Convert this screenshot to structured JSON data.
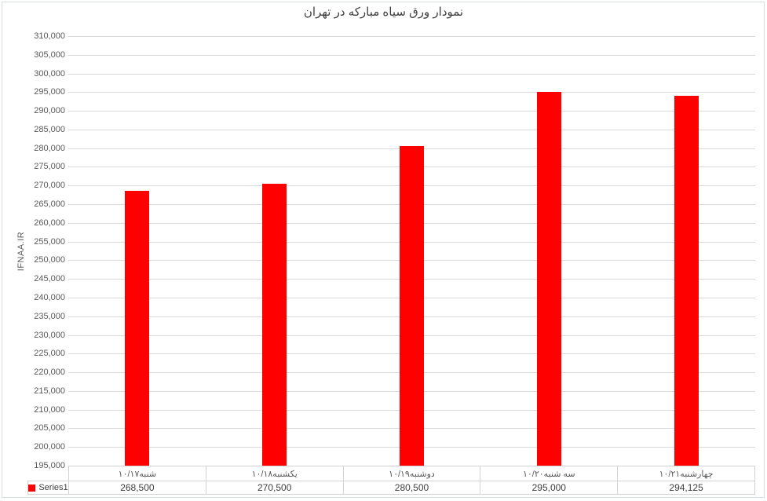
{
  "chart": {
    "legend_label": "Series1"
  },
  "chart_data": {
    "type": "bar",
    "title": "نمودار ورق سیاه مبارکه در تهران",
    "ylabel": "IFNAA.IR",
    "xlabel": "",
    "categories": [
      "شنبه۱۰/۱۷",
      "یکشنبه۱۰/۱۸",
      "دوشنبه۱۰/۱۹",
      "سه شنبه۱۰/۲۰",
      "چهارشنبه۱۰/۲۱"
    ],
    "series": [
      {
        "name": "Series1",
        "values": [
          268500,
          270500,
          280500,
          295000,
          294125
        ],
        "value_labels": [
          "268,500",
          "270,500",
          "280,500",
          "295,000",
          "294,125"
        ],
        "color": "#FF0000"
      }
    ],
    "ylim": [
      195000,
      310000
    ],
    "ytick_step": 5000,
    "ytick_number_format": "#,##0",
    "grid": true,
    "legend_position": "bottom-left",
    "data_table_shown": true,
    "colors": {
      "bar": "#FF0000",
      "gridline": "#D9D9D9",
      "table_border": "#D3D3D3",
      "axis_text": "#595959",
      "title_text": "#3F3F3F",
      "chart_border": "#D8DDE3"
    }
  }
}
